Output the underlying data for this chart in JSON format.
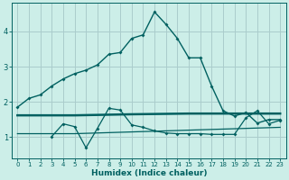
{
  "xlabel": "Humidex (Indice chaleur)",
  "bg_color": "#cceee8",
  "grid_color": "#aacccc",
  "line_color": "#006060",
  "xlim": [
    -0.5,
    23.5
  ],
  "ylim": [
    0.4,
    4.8
  ],
  "yticks": [
    1,
    2,
    3,
    4
  ],
  "xticks": [
    0,
    1,
    2,
    3,
    4,
    5,
    6,
    7,
    8,
    9,
    10,
    11,
    12,
    13,
    14,
    15,
    16,
    17,
    18,
    19,
    20,
    21,
    22,
    23
  ],
  "main_line_x": [
    0,
    1,
    2,
    3,
    4,
    5,
    6,
    7,
    8,
    9,
    10,
    11,
    12,
    13,
    14,
    15,
    16,
    17,
    18,
    19,
    20,
    21,
    22,
    23
  ],
  "main_line_y": [
    1.85,
    2.1,
    2.2,
    2.45,
    2.65,
    2.8,
    2.9,
    3.05,
    3.35,
    3.4,
    3.8,
    3.9,
    4.55,
    4.2,
    3.8,
    3.25,
    3.25,
    2.45,
    1.75,
    1.6,
    1.7,
    1.4,
    1.5,
    1.5
  ],
  "flat_line1_x": [
    0,
    5,
    10,
    15,
    23
  ],
  "flat_line1_y": [
    1.62,
    1.62,
    1.65,
    1.67,
    1.67
  ],
  "flat_line2_x": [
    0,
    5,
    10,
    15,
    23
  ],
  "flat_line2_y": [
    1.1,
    1.1,
    1.15,
    1.2,
    1.28
  ],
  "wavy_line_x": [
    3,
    4,
    5,
    6,
    7,
    8,
    9,
    10,
    11,
    12,
    13,
    14,
    15,
    16,
    17,
    18,
    19,
    20,
    21,
    22,
    23
  ],
  "wavy_line_y": [
    1.02,
    1.38,
    1.3,
    0.7,
    1.25,
    1.82,
    1.77,
    1.35,
    1.28,
    1.18,
    1.12,
    1.1,
    1.1,
    1.1,
    1.08,
    1.08,
    1.08,
    1.55,
    1.75,
    1.38,
    1.48
  ]
}
